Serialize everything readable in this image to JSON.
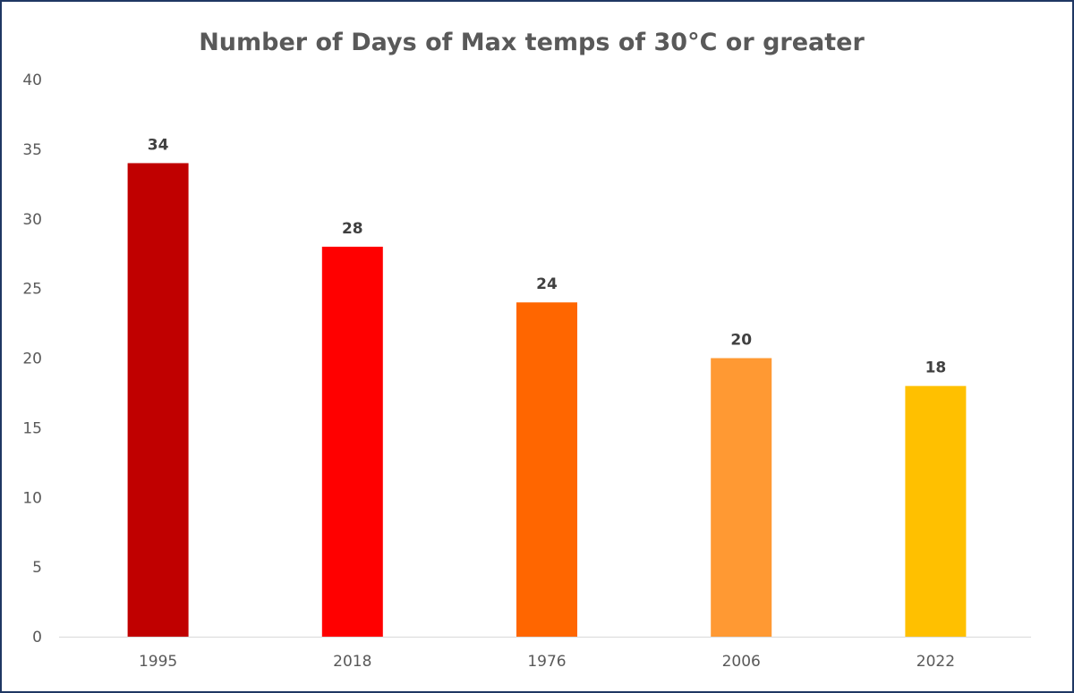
{
  "chart_data": {
    "type": "bar",
    "title": "Number of Days of Max temps of 30°C or greater",
    "xlabel": "",
    "ylabel": "",
    "categories": [
      "1995",
      "2018",
      "1976",
      "2006",
      "2022"
    ],
    "values": [
      34,
      28,
      24,
      20,
      18
    ],
    "data_labels": [
      "34",
      "28",
      "24",
      "20",
      "18"
    ],
    "bar_colors": [
      "#c00000",
      "#ff0000",
      "#ff6600",
      "#ff9933",
      "#ffc000"
    ],
    "ylim": [
      0,
      40
    ],
    "y_ticks": [
      0,
      5,
      10,
      15,
      20,
      25,
      30,
      35,
      40
    ],
    "y_tick_labels": [
      "0",
      "5",
      "10",
      "15",
      "20",
      "25",
      "30",
      "35",
      "40"
    ],
    "grid": false,
    "legend": "none"
  },
  "colors": {
    "frame": "#1f3763",
    "axis": "#d9d9d9"
  }
}
